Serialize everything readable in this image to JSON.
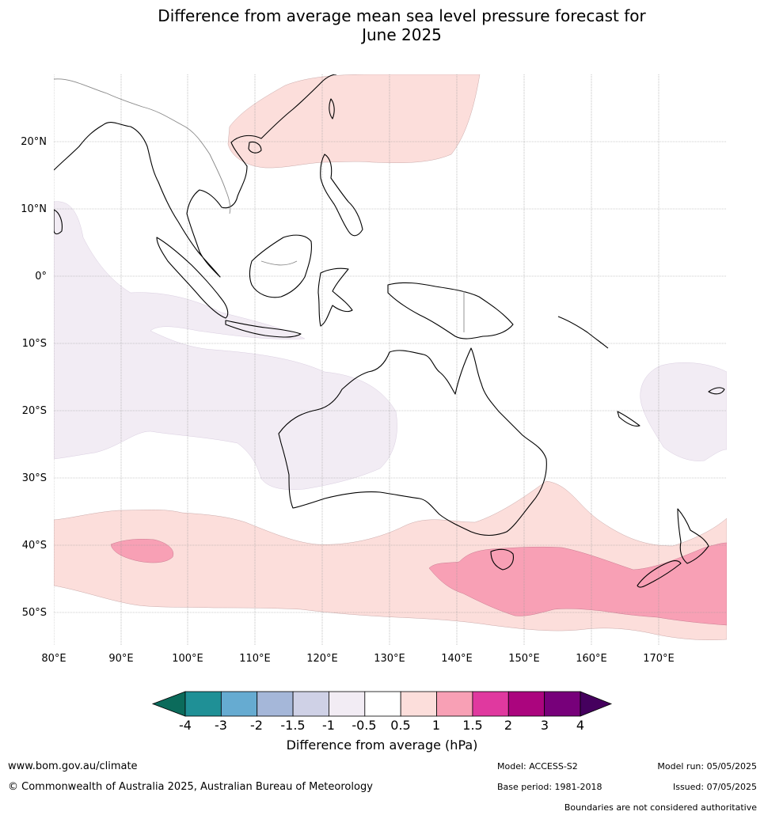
{
  "title_line1": "Difference from average mean sea level pressure forecast for",
  "title_line2": "June 2025",
  "map": {
    "lon_ticks": [
      "80°E",
      "90°E",
      "100°E",
      "110°E",
      "120°E",
      "130°E",
      "140°E",
      "150°E",
      "160°E",
      "170°E"
    ],
    "lat_ticks": [
      "20°N",
      "10°N",
      "0°",
      "10°S",
      "20°S",
      "30°S",
      "40°S",
      "50°S"
    ],
    "lon_range": [
      80,
      180
    ],
    "lat_range": [
      -55,
      30
    ]
  },
  "colorbar": {
    "title": "Difference from average (hPa)",
    "labels": [
      "-4",
      "-3",
      "-2",
      "-1.5",
      "-1",
      "-0.5",
      "0.5",
      "1",
      "1.5",
      "2",
      "3",
      "4"
    ],
    "colors": [
      "#0b6b5b",
      "#1f9096",
      "#66abd1",
      "#a5b7d9",
      "#cfd1e6",
      "#f2ecf4",
      "#ffffff",
      "#fcdedb",
      "#f8a0b5",
      "#e0399f",
      "#ab057e",
      "#77007a",
      "#45005e"
    ]
  },
  "footer": {
    "website": "www.bom.gov.au/climate",
    "copyright": "© Commonwealth of Australia 2025, Australian Bureau of Meteorology",
    "model": "Model: ACCESS-S2",
    "model_run": "Model run: 05/05/2025",
    "base_period": "Base period: 1981-2018",
    "issued": "Issued: 07/05/2025",
    "disclaimer": "Boundaries are not considered authoritative"
  }
}
